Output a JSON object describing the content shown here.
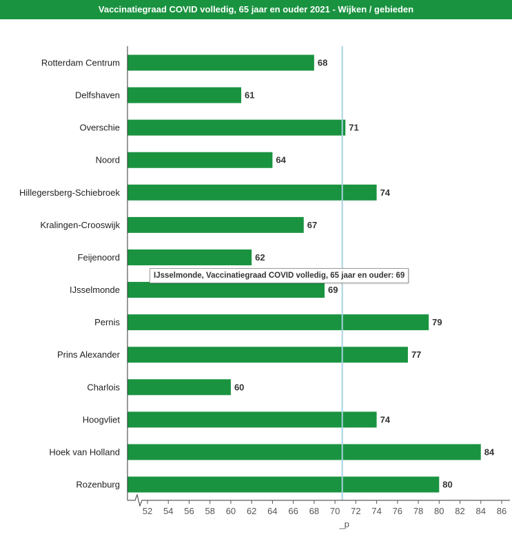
{
  "title": "Vaccinatiegraad COVID volledig, 65 jaar en ouder 2021 - Wijken / gebieden",
  "tooltip": {
    "text": "IJsselmonde, Vaccinatiegraad COVID volledig, 65 jaar en ouder: 69"
  },
  "colors": {
    "bar": "#1a9340",
    "reference_line": "#a9d3e0",
    "title_bg": "#1a9340"
  },
  "chart_data": {
    "type": "bar",
    "orientation": "horizontal",
    "title": "Vaccinatiegraad COVID volledig, 65 jaar en ouder 2021 - Wijken / gebieden",
    "categories": [
      "Rotterdam Centrum",
      "Delfshaven",
      "Overschie",
      "Noord",
      "Hillegersberg-Schiebroek",
      "Kralingen-Crooswijk",
      "Feijenoord",
      "IJsselmonde",
      "Pernis",
      "Prins Alexander",
      "Charlois",
      "Hoogvliet",
      "Hoek van Holland",
      "Rozenburg"
    ],
    "values": [
      68,
      61,
      71,
      64,
      74,
      67,
      62,
      69,
      79,
      77,
      60,
      74,
      84,
      80
    ],
    "xlim": [
      50,
      87
    ],
    "xticks": [
      52,
      54,
      56,
      58,
      60,
      62,
      64,
      66,
      68,
      70,
      72,
      74,
      76,
      78,
      80,
      82,
      84,
      86
    ],
    "reference_line": {
      "value": 70.7,
      "label": "_p"
    },
    "axis_break": true,
    "grid": false
  }
}
